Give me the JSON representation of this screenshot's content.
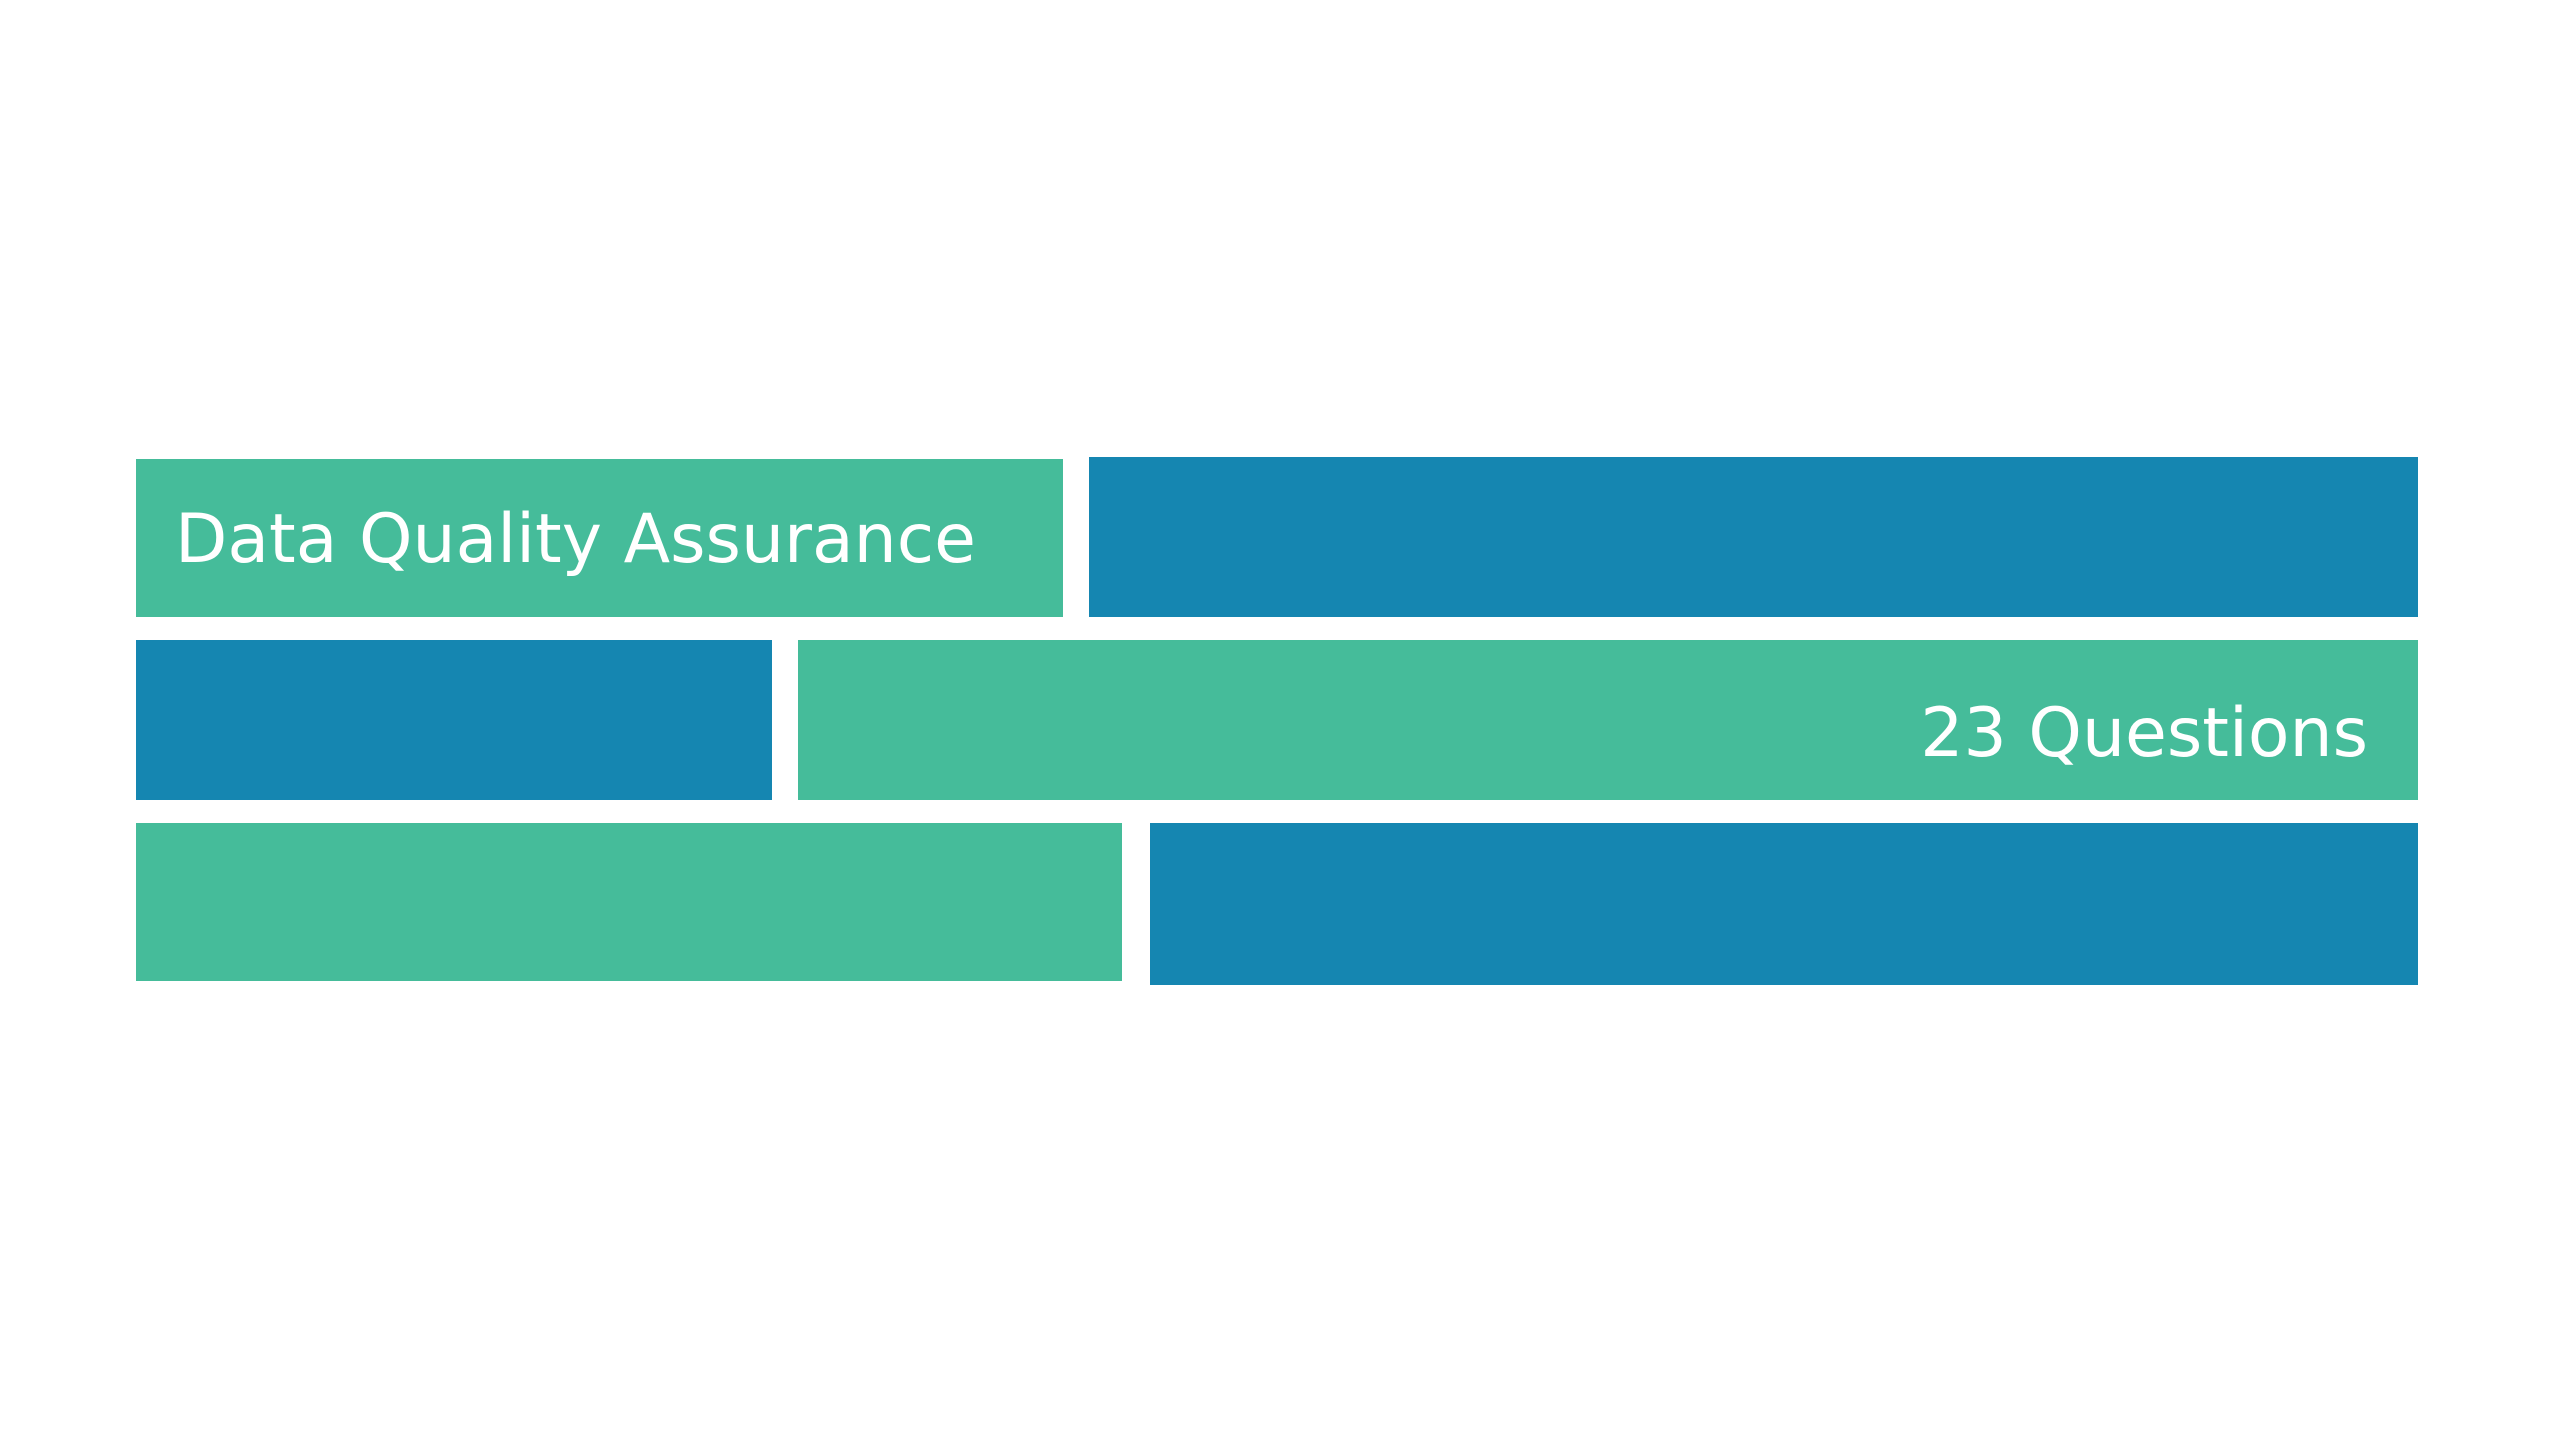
{
  "title": "Data Quality Assurance",
  "subtitle": "23 Questions"
}
